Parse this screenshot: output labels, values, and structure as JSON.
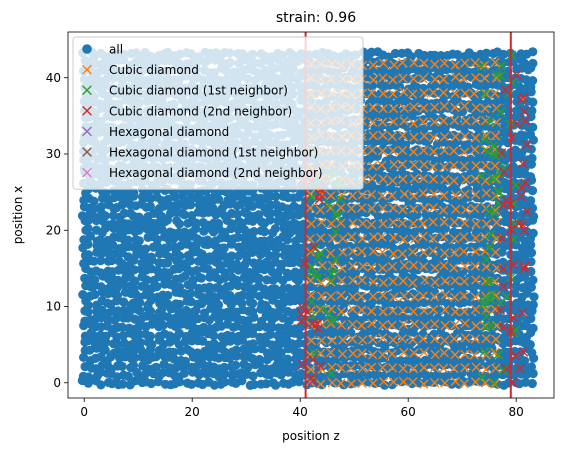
{
  "chart_data": {
    "type": "scatter",
    "title": "strain: 0.96",
    "xlabel": "position z",
    "ylabel": "position x",
    "xlim": [
      -3,
      87
    ],
    "ylim": [
      -2,
      46
    ],
    "xticks": [
      0,
      20,
      40,
      60,
      80
    ],
    "yticks": [
      0,
      10,
      20,
      30,
      40
    ],
    "grid": false,
    "legend_position": "top-left",
    "vertical_lines": [
      {
        "x": 41,
        "color": "#d62728"
      },
      {
        "x": 79,
        "color": "#d62728"
      }
    ],
    "series": [
      {
        "name": "all",
        "marker": "circle",
        "color": "#1f77b4",
        "region": {
          "x": [
            0,
            83
          ],
          "y": [
            0,
            44
          ]
        }
      },
      {
        "name": "Cubic diamond",
        "marker": "x",
        "color": "#ff7f0e",
        "region": {
          "x": [
            42,
            78
          ],
          "y": [
            0,
            43
          ]
        }
      },
      {
        "name": "Cubic diamond (1st neighbor)",
        "marker": "x",
        "color": "#2ca02c",
        "region_bands": [
          {
            "x": [
              42,
              48
            ],
            "y": [
              0,
              28
            ]
          },
          {
            "x": [
              73,
              80
            ],
            "y": [
              0,
              43
            ]
          }
        ]
      },
      {
        "name": "Cubic diamond (2nd neighbor)",
        "marker": "x",
        "color": "#d62728",
        "region_bands": [
          {
            "x": [
              40,
              44
            ],
            "y": [
              0,
              28
            ]
          },
          {
            "x": [
              77,
              82
            ],
            "y": [
              0,
              43
            ]
          }
        ]
      },
      {
        "name": "Hexagonal diamond",
        "marker": "x",
        "color": "#9467bd"
      },
      {
        "name": "Hexagonal diamond (1st neighbor)",
        "marker": "x",
        "color": "#8c564b"
      },
      {
        "name": "Hexagonal diamond (2nd neighbor)",
        "marker": "x",
        "color": "#e377c2"
      }
    ]
  }
}
